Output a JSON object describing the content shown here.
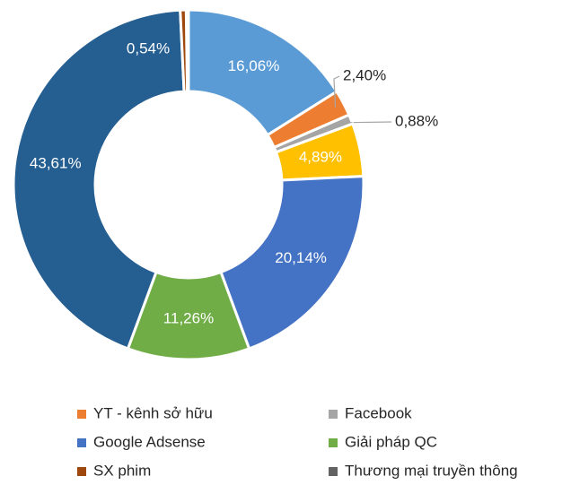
{
  "chart_data": {
    "type": "donut",
    "categories": [
      null,
      "YT - kênh sở hữu",
      "Facebook",
      null,
      "Google Adsense",
      "Giải pháp QC",
      null,
      "SX phim",
      "Thương mại truyền thông"
    ],
    "values": [
      16.06,
      2.4,
      0.88,
      4.89,
      20.14,
      11.26,
      43.61,
      0.54,
      null
    ],
    "value_labels": [
      "16,06%",
      "2,40%",
      "0,88%",
      "4,89%",
      "20,14%",
      "11,26%",
      "43,61%",
      "0,54%",
      null
    ],
    "colors": [
      "#5b9bd5",
      "#ed7d31",
      "#a5a5a5",
      "#ffc000",
      "#4472c4",
      "#70ad47",
      "#255e91",
      "#9e480e",
      "#636363"
    ],
    "legend": "bottom"
  }
}
